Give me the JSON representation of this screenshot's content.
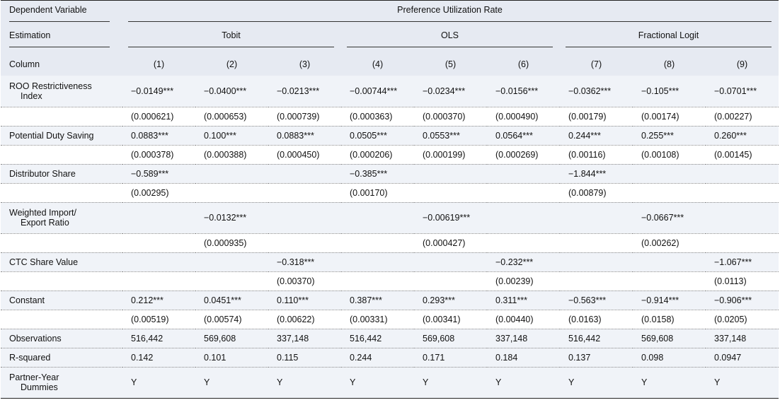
{
  "header": {
    "dependent_variable_label": "Dependent Variable",
    "dependent_variable": "Preference Utilization Rate",
    "estimation_label": "Estimation",
    "estimations": [
      "Tobit",
      "OLS",
      "Fractional Logit"
    ],
    "column_label": "Column",
    "columns": [
      "(1)",
      "(2)",
      "(3)",
      "(4)",
      "(5)",
      "(6)",
      "(7)",
      "(8)",
      "(9)"
    ]
  },
  "rows": [
    {
      "label": [
        "ROO Restrictiveness",
        "Index"
      ],
      "values": [
        "−0.0149***",
        "−0.0400***",
        "−0.0213***",
        "−0.00744***",
        "−0.0234***",
        "−0.0156***",
        "−0.0362***",
        "−0.105***",
        "−0.0701***"
      ]
    },
    {
      "label": null,
      "values": [
        "(0.000621)",
        "(0.000653)",
        "(0.000739)",
        "(0.000363)",
        "(0.000370)",
        "(0.000490)",
        "(0.00179)",
        "(0.00174)",
        "(0.00227)"
      ]
    },
    {
      "label": [
        "Potential Duty Saving"
      ],
      "values": [
        "0.0883***",
        "0.100***",
        "0.0883***",
        "0.0505***",
        "0.0553***",
        "0.0564***",
        "0.244***",
        "0.255***",
        "0.260***"
      ]
    },
    {
      "label": null,
      "values": [
        "(0.000378)",
        "(0.000388)",
        "(0.000450)",
        "(0.000206)",
        "(0.000199)",
        "(0.000269)",
        "(0.00116)",
        "(0.00108)",
        "(0.00145)"
      ]
    },
    {
      "label": [
        "Distributor Share"
      ],
      "values": [
        "−0.589***",
        null,
        null,
        "−0.385***",
        null,
        null,
        "−1.844***",
        null,
        null
      ]
    },
    {
      "label": null,
      "values": [
        "(0.00295)",
        null,
        null,
        "(0.00170)",
        null,
        null,
        "(0.00879)",
        null,
        null
      ]
    },
    {
      "label": [
        "Weighted Import/",
        "Export Ratio"
      ],
      "values": [
        null,
        "−0.0132***",
        null,
        null,
        "−0.00619***",
        null,
        null,
        "−0.0667***",
        null
      ]
    },
    {
      "label": null,
      "values": [
        null,
        "(0.000935)",
        null,
        null,
        "(0.000427)",
        null,
        null,
        "(0.00262)",
        null
      ]
    },
    {
      "label": [
        "CTC Share Value"
      ],
      "values": [
        null,
        null,
        "−0.318***",
        null,
        null,
        "−0.232***",
        null,
        null,
        "−1.067***"
      ]
    },
    {
      "label": null,
      "values": [
        null,
        null,
        "(0.00370)",
        null,
        null,
        "(0.00239)",
        null,
        null,
        "(0.0113)"
      ]
    },
    {
      "label": [
        "Constant"
      ],
      "values": [
        "0.212***",
        "0.0451***",
        "0.110***",
        "0.387***",
        "0.293***",
        "0.311***",
        "−0.563***",
        "−0.914***",
        "−0.906***"
      ]
    },
    {
      "label": null,
      "values": [
        "(0.00519)",
        "(0.00574)",
        "(0.00622)",
        "(0.00331)",
        "(0.00341)",
        "(0.00440)",
        "(0.0163)",
        "(0.0158)",
        "(0.0205)"
      ]
    },
    {
      "label": [
        "Observations"
      ],
      "values": [
        "516,442",
        "569,608",
        "337,148",
        "516,442",
        "569,608",
        "337,148",
        "516,442",
        "569,608",
        "337,148"
      ]
    },
    {
      "label": [
        "R-squared"
      ],
      "values": [
        "0.142",
        "0.101",
        "0.115",
        "0.244",
        "0.171",
        "0.184",
        "0.137",
        "0.098",
        "0.0947"
      ]
    },
    {
      "label": [
        "Partner-Year",
        "Dummies"
      ],
      "values": [
        "Y",
        "Y",
        "Y",
        "Y",
        "Y",
        "Y",
        "Y",
        "Y",
        "Y"
      ]
    }
  ]
}
